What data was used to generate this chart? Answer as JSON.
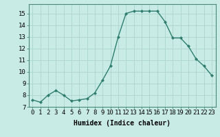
{
  "x": [
    0,
    1,
    2,
    3,
    4,
    5,
    6,
    7,
    8,
    9,
    10,
    11,
    12,
    13,
    14,
    15,
    16,
    17,
    18,
    19,
    20,
    21,
    22,
    23
  ],
  "y": [
    7.6,
    7.4,
    8.0,
    8.4,
    8.0,
    7.5,
    7.6,
    7.7,
    8.2,
    9.3,
    10.5,
    13.0,
    15.0,
    15.2,
    15.2,
    15.2,
    15.2,
    14.3,
    12.9,
    12.9,
    12.2,
    11.1,
    10.5,
    9.7
  ],
  "line_color": "#2e7d6e",
  "bg_color": "#c8ebe5",
  "grid_color": "#aad4cc",
  "xlabel": "Humidex (Indice chaleur)",
  "xlim": [
    -0.5,
    23.5
  ],
  "ylim": [
    7,
    15.8
  ],
  "yticks": [
    7,
    8,
    9,
    10,
    11,
    12,
    13,
    14,
    15
  ],
  "xticks": [
    0,
    1,
    2,
    3,
    4,
    5,
    6,
    7,
    8,
    9,
    10,
    11,
    12,
    13,
    14,
    15,
    16,
    17,
    18,
    19,
    20,
    21,
    22,
    23
  ],
  "marker": "D",
  "marker_size": 2.0,
  "line_width": 1.0,
  "xlabel_fontsize": 7,
  "tick_fontsize": 6.5
}
